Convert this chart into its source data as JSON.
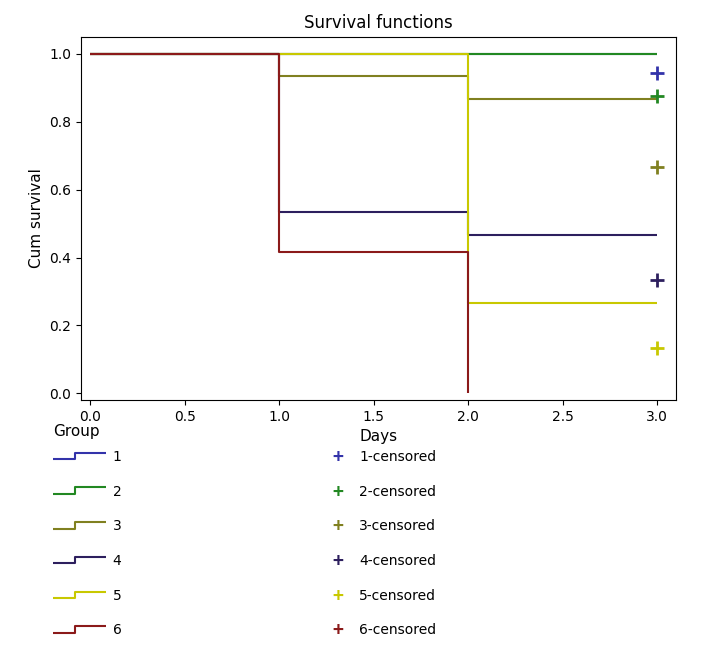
{
  "title": "Survival functions",
  "xlabel": "Days",
  "ylabel": "Cum survival",
  "xlim": [
    -0.05,
    3.1
  ],
  "ylim": [
    -0.02,
    1.05
  ],
  "xticks": [
    0.0,
    0.5,
    1.0,
    1.5,
    2.0,
    2.5,
    3.0
  ],
  "yticks": [
    0.0,
    0.2,
    0.4,
    0.6,
    0.8,
    1.0
  ],
  "groups": [
    {
      "label": "1",
      "color": "#3333aa",
      "line_x": [
        0.0,
        3.0
      ],
      "line_y": [
        1.0,
        1.0
      ],
      "censored_x": [
        3.0
      ],
      "censored_y": [
        0.944
      ]
    },
    {
      "label": "2",
      "color": "#228822",
      "line_x": [
        0.0,
        1.0,
        3.0
      ],
      "line_y": [
        1.0,
        1.0,
        1.0
      ],
      "censored_x": [
        3.0
      ],
      "censored_y": [
        0.875
      ]
    },
    {
      "label": "3",
      "color": "#808020",
      "line_x": [
        0.0,
        1.0,
        2.0,
        3.0
      ],
      "line_y": [
        1.0,
        0.933,
        0.867,
        0.867
      ],
      "censored_x": [
        3.0
      ],
      "censored_y": [
        0.667
      ]
    },
    {
      "label": "4",
      "color": "#2d1f5e",
      "line_x": [
        0.0,
        1.0,
        2.0,
        3.0
      ],
      "line_y": [
        1.0,
        0.533,
        0.467,
        0.467
      ],
      "censored_x": [
        3.0
      ],
      "censored_y": [
        0.333
      ]
    },
    {
      "label": "5",
      "color": "#c8c800",
      "line_x": [
        0.0,
        2.0,
        3.0
      ],
      "line_y": [
        1.0,
        0.267,
        0.267
      ],
      "censored_x": [
        3.0
      ],
      "censored_y": [
        0.133
      ]
    },
    {
      "label": "6",
      "color": "#8b1a1a",
      "line_x": [
        0.0,
        1.0,
        2.0
      ],
      "line_y": [
        1.0,
        0.417,
        0.0
      ],
      "censored_x": [],
      "censored_y": []
    }
  ],
  "legend_title": "Group",
  "figsize": [
    7.04,
    6.67
  ],
  "dpi": 100,
  "bg_color": "#ffffff"
}
